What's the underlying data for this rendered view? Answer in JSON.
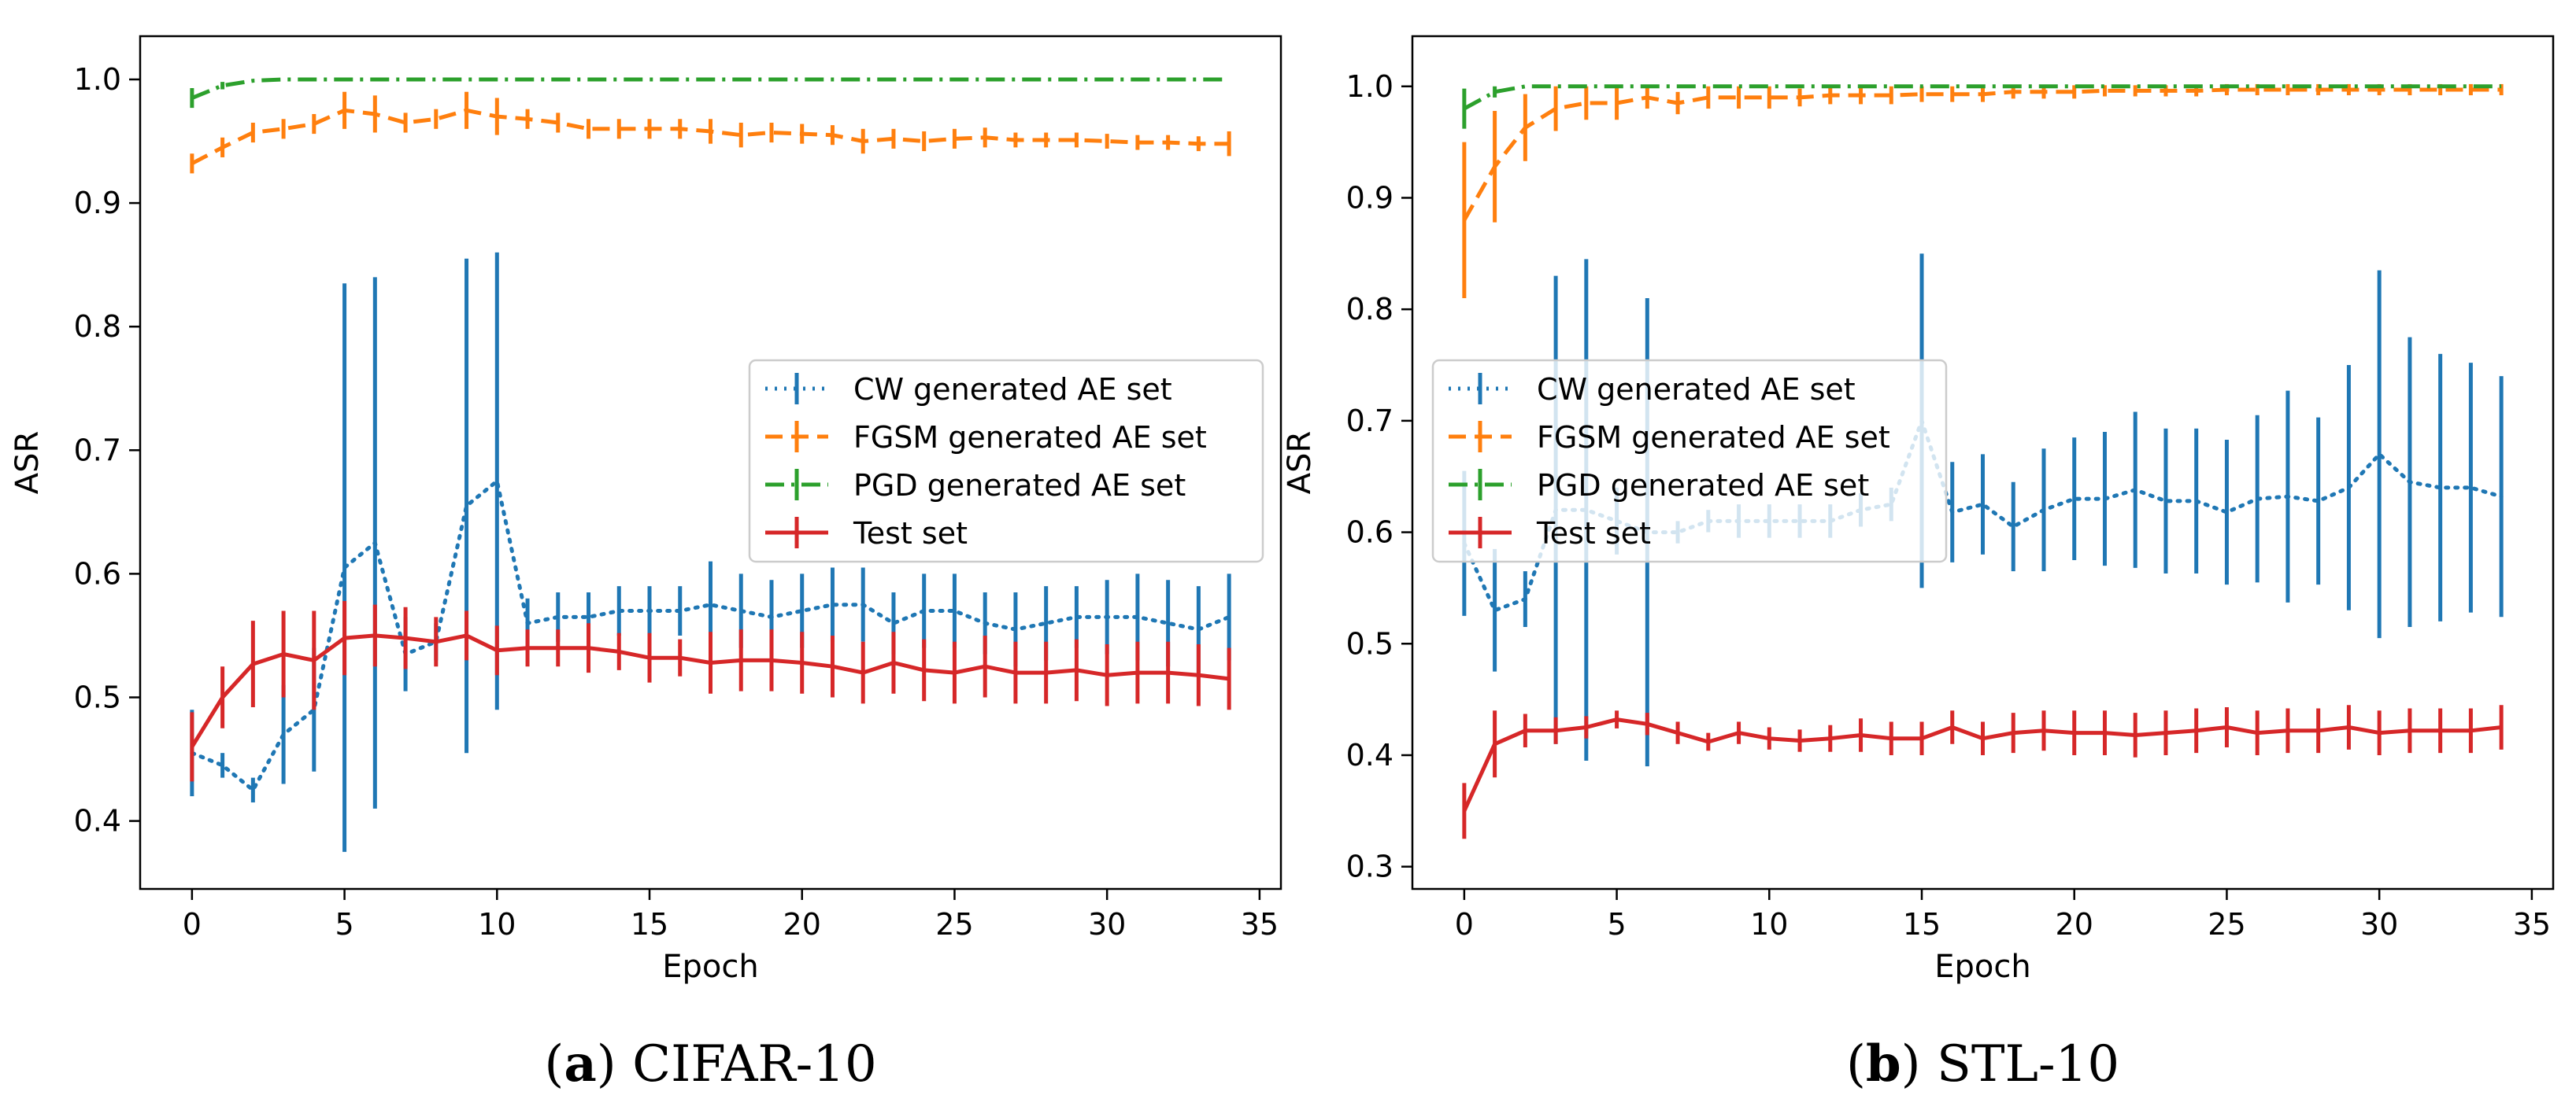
{
  "chart_data": [
    {
      "type": "line",
      "panel_letter": "a",
      "caption": "CIFAR-10",
      "xlabel": "Epoch",
      "ylabel": "ASR",
      "xlim": [
        -1.7,
        35.7
      ],
      "ylim": [
        0.345,
        1.035
      ],
      "xticks": [
        0,
        5,
        10,
        15,
        20,
        25,
        30,
        35
      ],
      "yticks": [
        0.4,
        0.5,
        0.6,
        0.7,
        0.8,
        0.9,
        1.0
      ],
      "grid": false,
      "legend": "center-right",
      "series": [
        {
          "name": "CW generated AE set",
          "color": "#1f77b4",
          "dash": "dotted",
          "x_range": [
            0,
            34
          ],
          "values": [
            0.455,
            0.445,
            0.425,
            0.47,
            0.49,
            0.605,
            0.625,
            0.535,
            0.545,
            0.655,
            0.675,
            0.56,
            0.565,
            0.565,
            0.57,
            0.57,
            0.57,
            0.575,
            0.57,
            0.565,
            0.57,
            0.575,
            0.575,
            0.56,
            0.57,
            0.57,
            0.56,
            0.555,
            0.56,
            0.565,
            0.565,
            0.565,
            0.56,
            0.555,
            0.565
          ],
          "err": [
            0.035,
            0.01,
            0.01,
            0.04,
            0.05,
            0.23,
            0.215,
            0.03,
            0.015,
            0.2,
            0.185,
            0.02,
            0.02,
            0.02,
            0.02,
            0.02,
            0.02,
            0.035,
            0.03,
            0.03,
            0.03,
            0.03,
            0.03,
            0.025,
            0.03,
            0.03,
            0.025,
            0.03,
            0.03,
            0.025,
            0.03,
            0.035,
            0.035,
            0.035,
            0.035
          ]
        },
        {
          "name": "FGSM generated AE set",
          "color": "#ff7f0e",
          "dash": "dashed",
          "x_range": [
            0,
            34
          ],
          "values": [
            0.932,
            0.945,
            0.957,
            0.96,
            0.964,
            0.975,
            0.972,
            0.965,
            0.968,
            0.975,
            0.97,
            0.968,
            0.965,
            0.96,
            0.96,
            0.96,
            0.96,
            0.958,
            0.955,
            0.957,
            0.956,
            0.955,
            0.95,
            0.952,
            0.95,
            0.952,
            0.953,
            0.951,
            0.951,
            0.951,
            0.95,
            0.949,
            0.949,
            0.948,
            0.948
          ],
          "err": [
            0.008,
            0.008,
            0.008,
            0.008,
            0.008,
            0.015,
            0.015,
            0.008,
            0.008,
            0.015,
            0.015,
            0.008,
            0.008,
            0.008,
            0.008,
            0.008,
            0.008,
            0.01,
            0.01,
            0.008,
            0.008,
            0.008,
            0.01,
            0.008,
            0.008,
            0.008,
            0.008,
            0.006,
            0.006,
            0.006,
            0.006,
            0.006,
            0.006,
            0.006,
            0.01
          ]
        },
        {
          "name": "PGD generated AE set",
          "color": "#2ca02c",
          "dash": "dashdot",
          "x_range": [
            0,
            34
          ],
          "values": [
            0.985,
            0.995,
            0.999,
            1,
            1,
            1,
            1,
            1,
            1,
            1,
            1,
            1,
            1,
            1,
            1,
            1,
            1,
            1,
            1,
            1,
            1,
            1,
            1,
            1,
            1,
            1,
            1,
            1,
            1,
            1,
            1,
            1,
            1,
            1,
            1
          ],
          "err": [
            0.008,
            0.003,
            0,
            0,
            0,
            0,
            0,
            0,
            0,
            0,
            0,
            0,
            0,
            0,
            0,
            0,
            0,
            0,
            0,
            0,
            0,
            0,
            0,
            0,
            0,
            0,
            0,
            0,
            0,
            0,
            0,
            0,
            0,
            0,
            0
          ]
        },
        {
          "name": "Test set",
          "color": "#d62728",
          "dash": "solid",
          "x_range": [
            0,
            34
          ],
          "values": [
            0.46,
            0.5,
            0.527,
            0.535,
            0.53,
            0.548,
            0.55,
            0.548,
            0.545,
            0.55,
            0.538,
            0.54,
            0.54,
            0.54,
            0.537,
            0.532,
            0.532,
            0.528,
            0.53,
            0.53,
            0.528,
            0.525,
            0.52,
            0.528,
            0.522,
            0.52,
            0.525,
            0.52,
            0.52,
            0.522,
            0.518,
            0.52,
            0.52,
            0.518,
            0.515
          ],
          "err": [
            0.028,
            0.025,
            0.035,
            0.035,
            0.04,
            0.03,
            0.025,
            0.025,
            0.02,
            0.02,
            0.02,
            0.015,
            0.015,
            0.02,
            0.015,
            0.02,
            0.015,
            0.025,
            0.025,
            0.025,
            0.025,
            0.025,
            0.025,
            0.025,
            0.025,
            0.025,
            0.025,
            0.025,
            0.025,
            0.025,
            0.025,
            0.025,
            0.025,
            0.025,
            0.025
          ]
        }
      ]
    },
    {
      "type": "line",
      "panel_letter": "b",
      "caption": "STL-10",
      "xlabel": "Epoch",
      "ylabel": "ASR",
      "xlim": [
        -1.7,
        35.7
      ],
      "ylim": [
        0.28,
        1.045
      ],
      "xticks": [
        0,
        5,
        10,
        15,
        20,
        25,
        30,
        35
      ],
      "yticks": [
        0.3,
        0.4,
        0.5,
        0.6,
        0.7,
        0.8,
        0.9,
        1.0
      ],
      "grid": false,
      "legend": "center-left",
      "series": [
        {
          "name": "CW generated AE set",
          "color": "#1f77b4",
          "dash": "dotted",
          "x_range": [
            0,
            34
          ],
          "values": [
            0.59,
            0.53,
            0.54,
            0.62,
            0.62,
            0.61,
            0.6,
            0.6,
            0.61,
            0.61,
            0.61,
            0.61,
            0.61,
            0.62,
            0.625,
            0.7,
            0.618,
            0.625,
            0.605,
            0.62,
            0.63,
            0.63,
            0.638,
            0.628,
            0.628,
            0.618,
            0.63,
            0.632,
            0.628,
            0.64,
            0.67,
            0.645,
            0.64,
            0.64,
            0.632
          ],
          "err": [
            0.065,
            0.055,
            0.025,
            0.21,
            0.225,
            0.03,
            0.21,
            0.01,
            0.01,
            0.015,
            0.015,
            0.015,
            0.015,
            0.015,
            0.015,
            0.15,
            0.045,
            0.045,
            0.04,
            0.055,
            0.055,
            0.06,
            0.07,
            0.065,
            0.065,
            0.065,
            0.075,
            0.095,
            0.075,
            0.11,
            0.165,
            0.13,
            0.12,
            0.112,
            0.108
          ]
        },
        {
          "name": "FGSM generated AE set",
          "color": "#ff7f0e",
          "dash": "dashed",
          "x_range": [
            0,
            34
          ],
          "values": [
            0.88,
            0.928,
            0.963,
            0.98,
            0.985,
            0.985,
            0.99,
            0.985,
            0.99,
            0.99,
            0.99,
            0.99,
            0.992,
            0.992,
            0.992,
            0.993,
            0.993,
            0.993,
            0.995,
            0.995,
            0.995,
            0.996,
            0.996,
            0.996,
            0.996,
            0.997,
            0.997,
            0.997,
            0.997,
            0.997,
            0.997,
            0.997,
            0.997,
            0.997,
            0.997
          ],
          "err": [
            0.07,
            0.05,
            0.03,
            0.02,
            0.015,
            0.015,
            0.01,
            0.01,
            0.01,
            0.01,
            0.01,
            0.008,
            0.008,
            0.008,
            0.008,
            0.007,
            0.007,
            0.007,
            0.006,
            0.006,
            0.006,
            0.005,
            0.005,
            0.005,
            0.005,
            0.005,
            0.005,
            0.005,
            0.005,
            0.005,
            0.005,
            0.005,
            0.005,
            0.005,
            0.005
          ]
        },
        {
          "name": "PGD generated AE set",
          "color": "#2ca02c",
          "dash": "dashdot",
          "x_range": [
            0,
            34
          ],
          "values": [
            0.98,
            0.995,
            1,
            1,
            1,
            1,
            1,
            1,
            1,
            1,
            1,
            1,
            1,
            1,
            1,
            1,
            1,
            1,
            1,
            1,
            1,
            1,
            1,
            1,
            1,
            1,
            1,
            1,
            1,
            1,
            1,
            1,
            1,
            1,
            1
          ],
          "err": [
            0.018,
            0.005,
            0,
            0,
            0,
            0,
            0,
            0,
            0,
            0,
            0,
            0,
            0,
            0,
            0,
            0,
            0,
            0,
            0,
            0,
            0,
            0,
            0,
            0,
            0,
            0,
            0,
            0,
            0,
            0,
            0,
            0,
            0,
            0,
            0
          ]
        },
        {
          "name": "Test set",
          "color": "#d62728",
          "dash": "solid",
          "x_range": [
            0,
            34
          ],
          "values": [
            0.35,
            0.41,
            0.422,
            0.422,
            0.425,
            0.432,
            0.428,
            0.42,
            0.412,
            0.42,
            0.415,
            0.413,
            0.415,
            0.418,
            0.415,
            0.415,
            0.425,
            0.415,
            0.42,
            0.422,
            0.42,
            0.42,
            0.418,
            0.42,
            0.422,
            0.425,
            0.42,
            0.422,
            0.422,
            0.425,
            0.42,
            0.422,
            0.422,
            0.422,
            0.425
          ],
          "err": [
            0.025,
            0.03,
            0.015,
            0.012,
            0.01,
            0.008,
            0.01,
            0.01,
            0.008,
            0.01,
            0.01,
            0.01,
            0.012,
            0.015,
            0.015,
            0.015,
            0.015,
            0.015,
            0.018,
            0.018,
            0.02,
            0.02,
            0.02,
            0.02,
            0.02,
            0.018,
            0.02,
            0.02,
            0.02,
            0.02,
            0.02,
            0.02,
            0.02,
            0.02,
            0.02
          ]
        }
      ]
    }
  ]
}
